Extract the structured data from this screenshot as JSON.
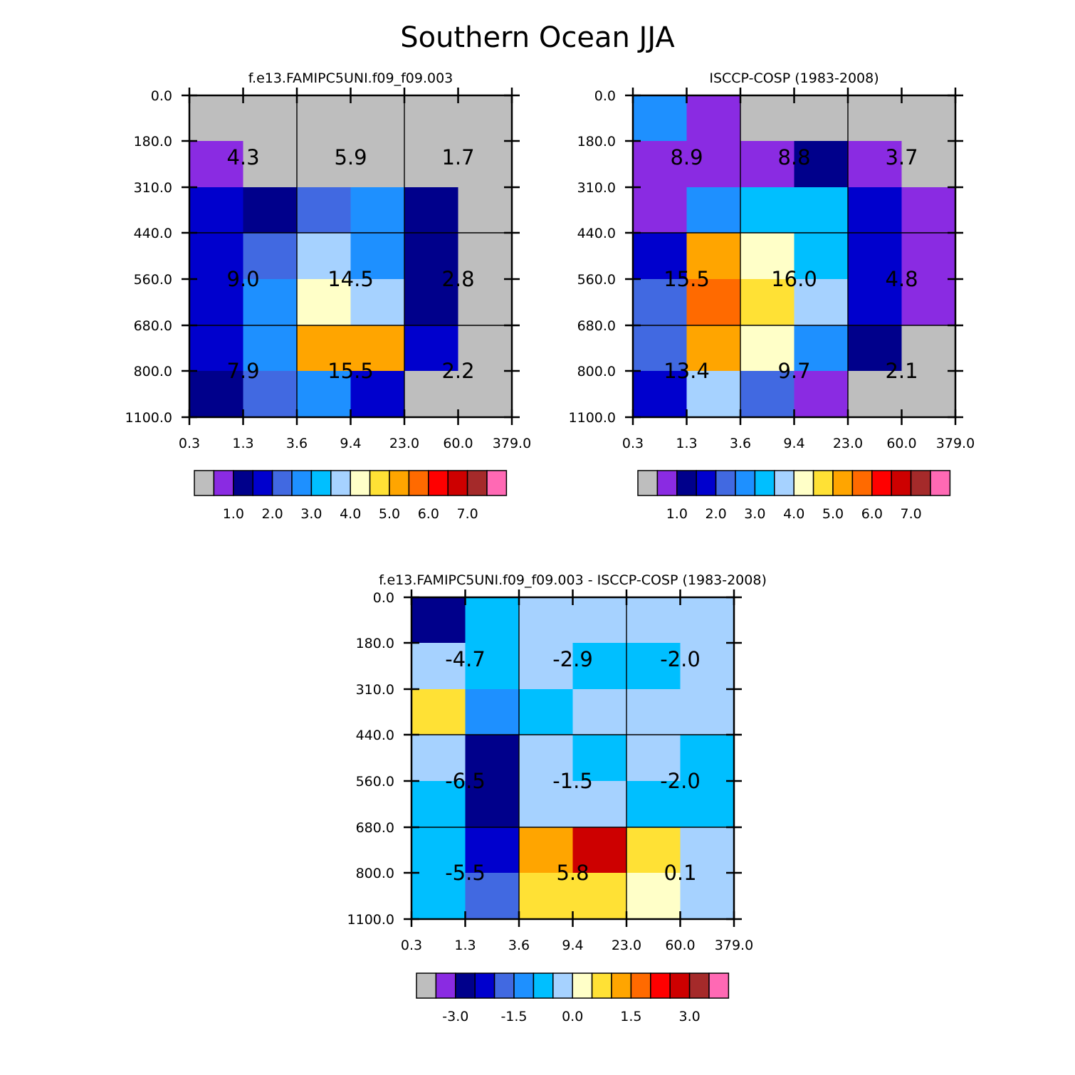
{
  "title": "Southern Ocean JJA",
  "chart_data": [
    {
      "type": "heatmap",
      "title": "f.e13.FAMIPC5UNI.f09_f09.003",
      "x_ticks": [
        "0.3",
        "1.3",
        "3.6",
        "9.4",
        "23.0",
        "60.0",
        "379.0"
      ],
      "y_ticks": [
        "0.0",
        "180.0",
        "310.0",
        "440.0",
        "560.0",
        "680.0",
        "800.0",
        "1100.0"
      ],
      "cells": [
        [
          "#bebebe",
          "#bebebe",
          "#bebebe",
          "#bebebe",
          "#bebebe",
          "#bebebe"
        ],
        [
          "#8a2be2",
          "#bebebe",
          "#bebebe",
          "#bebebe",
          "#bebebe",
          "#bebebe"
        ],
        [
          "#0000cd",
          "#00008b",
          "#4169e1",
          "#1e90ff",
          "#00008b",
          "#bebebe"
        ],
        [
          "#0000cd",
          "#4169e1",
          "#a6d2ff",
          "#1e90ff",
          "#00008b",
          "#bebebe"
        ],
        [
          "#0000cd",
          "#1e90ff",
          "#ffffc8",
          "#a6d2ff",
          "#00008b",
          "#bebebe"
        ],
        [
          "#0000cd",
          "#1e90ff",
          "#ffa500",
          "#ffa500",
          "#0000cd",
          "#bebebe"
        ],
        [
          "#00008b",
          "#4169e1",
          "#1e90ff",
          "#0000cd",
          "#bebebe",
          "#bebebe"
        ]
      ],
      "block_values": [
        [
          "4.3",
          "5.9",
          "1.7"
        ],
        [
          "9.0",
          "14.5",
          "2.8"
        ],
        [
          "7.9",
          "15.5",
          "2.2"
        ]
      ],
      "colorbar": {
        "colors": [
          "#bebebe",
          "#8a2be2",
          "#00008b",
          "#0000cd",
          "#4169e1",
          "#1e90ff",
          "#00bfff",
          "#a6d2ff",
          "#ffffc8",
          "#ffe135",
          "#ffa500",
          "#ff6a00",
          "#ff0000",
          "#cd0000",
          "#a52a2a",
          "#ff69b4"
        ],
        "labels": [
          "1.0",
          "2.0",
          "3.0",
          "4.0",
          "5.0",
          "6.0",
          "7.0"
        ]
      }
    },
    {
      "type": "heatmap",
      "title": "ISCCP-COSP (1983-2008)",
      "x_ticks": [
        "0.3",
        "1.3",
        "3.6",
        "9.4",
        "23.0",
        "60.0",
        "379.0"
      ],
      "y_ticks": [
        "0.0",
        "180.0",
        "310.0",
        "440.0",
        "560.0",
        "680.0",
        "800.0",
        "1100.0"
      ],
      "cells": [
        [
          "#1e90ff",
          "#8a2be2",
          "#bebebe",
          "#bebebe",
          "#bebebe",
          "#bebebe"
        ],
        [
          "#8a2be2",
          "#8a2be2",
          "#8a2be2",
          "#00008b",
          "#8a2be2",
          "#bebebe"
        ],
        [
          "#8a2be2",
          "#1e90ff",
          "#00bfff",
          "#00bfff",
          "#0000cd",
          "#8a2be2"
        ],
        [
          "#0000cd",
          "#ffa500",
          "#ffffc8",
          "#00bfff",
          "#0000cd",
          "#8a2be2"
        ],
        [
          "#4169e1",
          "#ff6a00",
          "#ffe135",
          "#a6d2ff",
          "#0000cd",
          "#8a2be2"
        ],
        [
          "#4169e1",
          "#ffa500",
          "#ffffc8",
          "#1e90ff",
          "#00008b",
          "#bebebe"
        ],
        [
          "#0000cd",
          "#a6d2ff",
          "#4169e1",
          "#8a2be2",
          "#bebebe",
          "#bebebe"
        ]
      ],
      "block_values": [
        [
          "8.9",
          "8.8",
          "3.7"
        ],
        [
          "15.5",
          "16.0",
          "4.8"
        ],
        [
          "13.4",
          "9.7",
          "2.1"
        ]
      ],
      "colorbar": {
        "colors": [
          "#bebebe",
          "#8a2be2",
          "#00008b",
          "#0000cd",
          "#4169e1",
          "#1e90ff",
          "#00bfff",
          "#a6d2ff",
          "#ffffc8",
          "#ffe135",
          "#ffa500",
          "#ff6a00",
          "#ff0000",
          "#cd0000",
          "#a52a2a",
          "#ff69b4"
        ],
        "labels": [
          "1.0",
          "2.0",
          "3.0",
          "4.0",
          "5.0",
          "6.0",
          "7.0"
        ]
      }
    },
    {
      "type": "heatmap",
      "title": "f.e13.FAMIPC5UNI.f09_f09.003 - ISCCP-COSP (1983-2008)",
      "x_ticks": [
        "0.3",
        "1.3",
        "3.6",
        "9.4",
        "23.0",
        "60.0",
        "379.0"
      ],
      "y_ticks": [
        "0.0",
        "180.0",
        "310.0",
        "440.0",
        "560.0",
        "680.0",
        "800.0",
        "1100.0"
      ],
      "cells": [
        [
          "#00008b",
          "#00bfff",
          "#a6d2ff",
          "#a6d2ff",
          "#a6d2ff",
          "#a6d2ff"
        ],
        [
          "#a6d2ff",
          "#00bfff",
          "#a6d2ff",
          "#00bfff",
          "#00bfff",
          "#a6d2ff"
        ],
        [
          "#ffe135",
          "#1e90ff",
          "#00bfff",
          "#a6d2ff",
          "#a6d2ff",
          "#a6d2ff"
        ],
        [
          "#a6d2ff",
          "#00008b",
          "#a6d2ff",
          "#00bfff",
          "#a6d2ff",
          "#00bfff"
        ],
        [
          "#00bfff",
          "#00008b",
          "#a6d2ff",
          "#a6d2ff",
          "#00bfff",
          "#00bfff"
        ],
        [
          "#00bfff",
          "#0000cd",
          "#ffa500",
          "#cd0000",
          "#ffe135",
          "#a6d2ff"
        ],
        [
          "#00bfff",
          "#4169e1",
          "#ffe135",
          "#ffe135",
          "#ffffc8",
          "#a6d2ff"
        ]
      ],
      "block_values": [
        [
          "-4.7",
          "-2.9",
          "-2.0"
        ],
        [
          "-6.5",
          "-1.5",
          "-2.0"
        ],
        [
          "-5.5",
          "5.8",
          "0.1"
        ]
      ],
      "colorbar": {
        "colors": [
          "#bebebe",
          "#8a2be2",
          "#00008b",
          "#0000cd",
          "#4169e1",
          "#1e90ff",
          "#00bfff",
          "#a6d2ff",
          "#ffffc8",
          "#ffe135",
          "#ffa500",
          "#ff6a00",
          "#ff0000",
          "#cd0000",
          "#a52a2a",
          "#ff69b4"
        ],
        "labels": [
          "-3.0",
          "-1.5",
          "0.0",
          "1.5",
          "3.0"
        ]
      }
    }
  ]
}
